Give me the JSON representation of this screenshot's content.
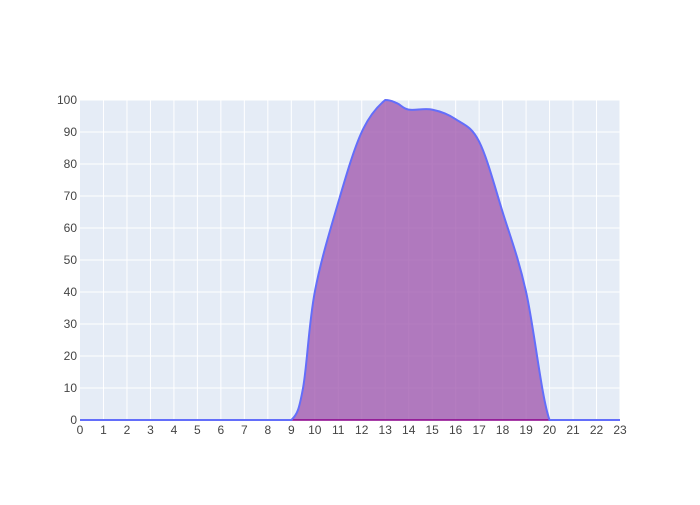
{
  "chart_data": {
    "type": "area",
    "x": [
      0,
      1,
      2,
      3,
      4,
      5,
      6,
      7,
      8,
      9,
      9.5,
      10,
      11,
      12,
      13,
      13.5,
      14,
      15,
      16,
      17,
      18,
      19,
      20,
      21,
      22,
      23
    ],
    "y": [
      0,
      0,
      0,
      0,
      0,
      0,
      0,
      0,
      0,
      0,
      10,
      40,
      68,
      90,
      100,
      99,
      97,
      97,
      94,
      87,
      65,
      40,
      0,
      0,
      0,
      0
    ],
    "xlim": [
      0,
      23
    ],
    "ylim": [
      0,
      100
    ],
    "x_ticks": [
      0,
      1,
      2,
      3,
      4,
      5,
      6,
      7,
      8,
      9,
      10,
      11,
      12,
      13,
      14,
      15,
      16,
      17,
      18,
      19,
      20,
      21,
      22,
      23
    ],
    "y_ticks": [
      0,
      10,
      20,
      30,
      40,
      50,
      60,
      70,
      80,
      90,
      100
    ],
    "grid": true,
    "colors": {
      "plot_bg": "#E5ECF6",
      "grid": "#ffffff",
      "line": "#636EFA",
      "fill": "#A35CB0",
      "baseline": "#8B008B"
    }
  }
}
